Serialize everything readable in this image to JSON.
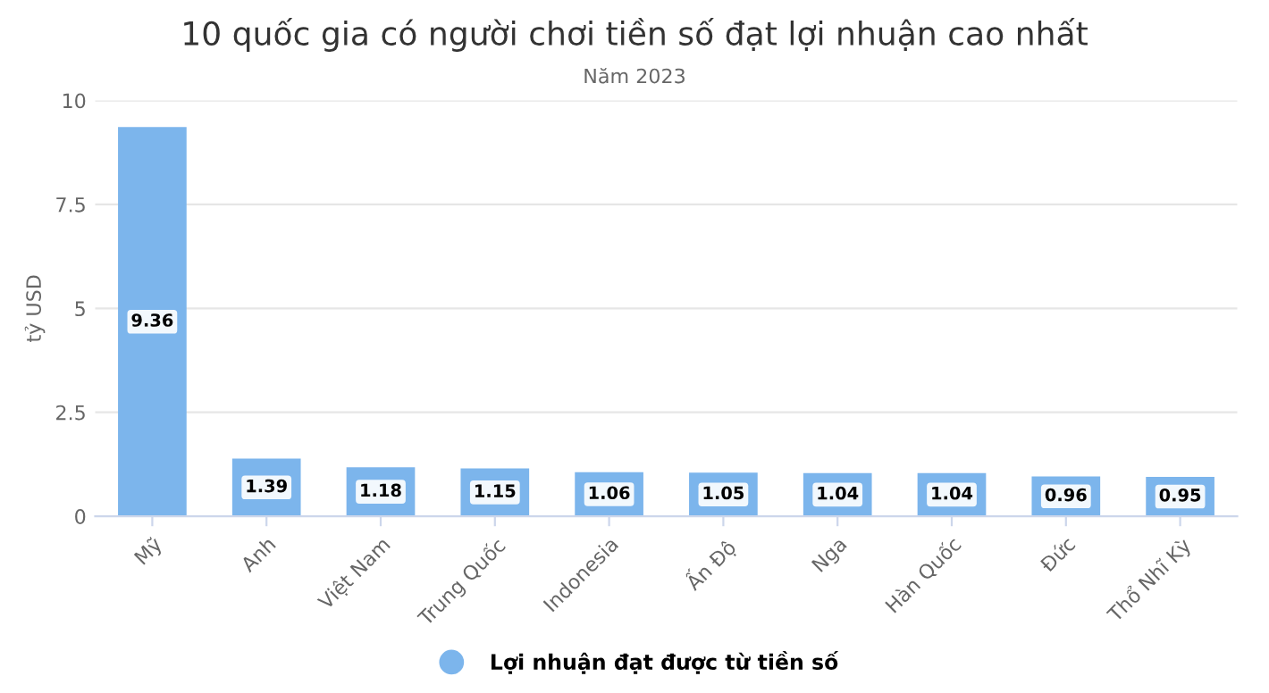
{
  "chart_data": {
    "type": "bar",
    "title": "10 quốc gia có người chơi tiền số đạt lợi nhuận cao nhất",
    "subtitle": "Năm 2023",
    "ylabel": "tỷ USD",
    "categories": [
      "Mỹ",
      "Anh",
      "Việt Nam",
      "Trung Quốc",
      "Indonesia",
      "Ấn Độ",
      "Nga",
      "Hàn Quốc",
      "Đức",
      "Thổ Nhĩ Kỳ"
    ],
    "series": [
      {
        "name": "Lợi nhuận đạt được từ tiền số",
        "color": "#7cb5ec",
        "values": [
          9.36,
          1.39,
          1.18,
          1.15,
          1.06,
          1.05,
          1.04,
          1.04,
          0.96,
          0.95
        ]
      }
    ],
    "ylim": [
      0,
      10
    ],
    "yticks": [
      0,
      2.5,
      5,
      7.5,
      10
    ],
    "grid": "y",
    "legend": "bottom",
    "data_labels": true
  }
}
